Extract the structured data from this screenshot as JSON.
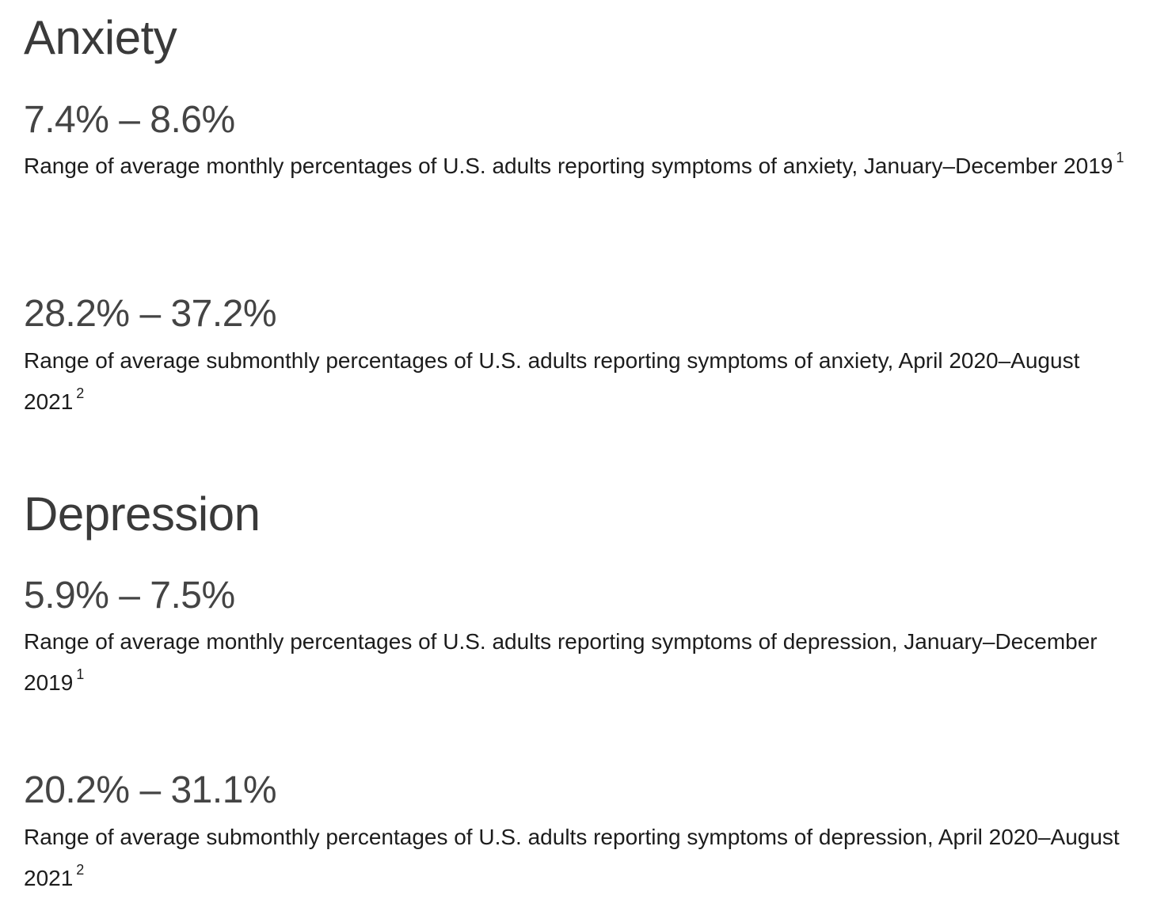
{
  "sections": [
    {
      "title": "Anxiety",
      "stats": [
        {
          "value": "7.4% – 8.6%",
          "description": "Range of average monthly percentages of U.S. adults reporting symptoms of anxiety, January–December 2019",
          "footnote": "1"
        },
        {
          "value": "28.2% – 37.2%",
          "description": "Range of average submonthly percentages of U.S. adults reporting symptoms of anxiety, April 2020–August 2021",
          "footnote": "2"
        }
      ]
    },
    {
      "title": "Depression",
      "stats": [
        {
          "value": "5.9% – 7.5%",
          "description": "Range of average monthly percentages of U.S. adults reporting symptoms of depression, January–December 2019",
          "footnote": "1"
        },
        {
          "value": "20.2% – 31.1%",
          "description": "Range of average submonthly percentages of U.S. adults reporting symptoms of depression, April 2020–August 2021",
          "footnote": "2"
        }
      ]
    }
  ]
}
